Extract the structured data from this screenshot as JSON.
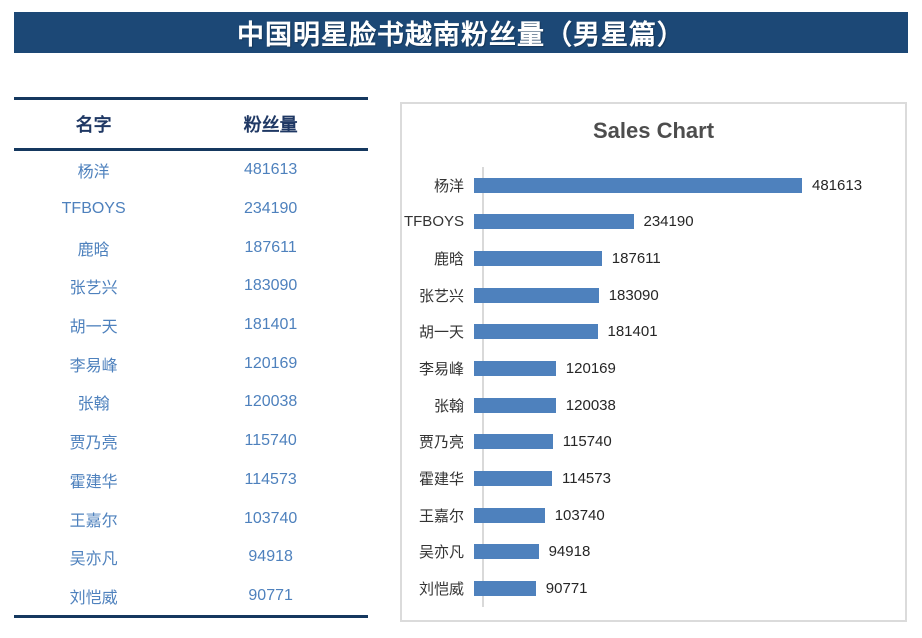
{
  "banner": {
    "title": "中国明星脸书越南粉丝量（男星篇）",
    "bg_color": "#1C4876",
    "text_color": "#FFFFFF"
  },
  "table": {
    "columns": [
      "名字",
      "粉丝量"
    ],
    "rows": [
      {
        "name": "杨洋",
        "value": "481613"
      },
      {
        "name": "TFBOYS",
        "value": "234190"
      },
      {
        "name": "鹿晗",
        "value": "187611"
      },
      {
        "name": "张艺兴",
        "value": "183090"
      },
      {
        "name": "胡一天",
        "value": "181401"
      },
      {
        "name": "李易峰",
        "value": "120169"
      },
      {
        "name": "张翰",
        "value": "120038"
      },
      {
        "name": "贾乃亮",
        "value": "115740"
      },
      {
        "name": "霍建华",
        "value": "114573"
      },
      {
        "name": "王嘉尔",
        "value": "103740"
      },
      {
        "name": "吴亦凡",
        "value": "94918"
      },
      {
        "name": "刘恺威",
        "value": "90771"
      }
    ],
    "border_color": "#15385F",
    "header_text_color": "#1F3864",
    "data_text_color": "#4E81BD"
  },
  "chart": {
    "title": "Sales Chart"
  },
  "chart_data": {
    "type": "bar",
    "orientation": "horizontal",
    "title": "Sales Chart",
    "categories": [
      "杨洋",
      "TFBOYS",
      "鹿晗",
      "张艺兴",
      "胡一天",
      "李易峰",
      "张翰",
      "贾乃亮",
      "霍建华",
      "王嘉尔",
      "吴亦凡",
      "刘恺威"
    ],
    "values": [
      481613,
      234190,
      187611,
      183090,
      181401,
      120169,
      120038,
      115740,
      114573,
      103740,
      94918,
      90771
    ],
    "value_labels": true,
    "xlim": [
      0,
      481613
    ],
    "grid": false,
    "legend": false,
    "bar_color": "#4E81BD",
    "axis_color": "#D9D9D9",
    "label_color": "#333333",
    "value_label_color": "#262626"
  }
}
